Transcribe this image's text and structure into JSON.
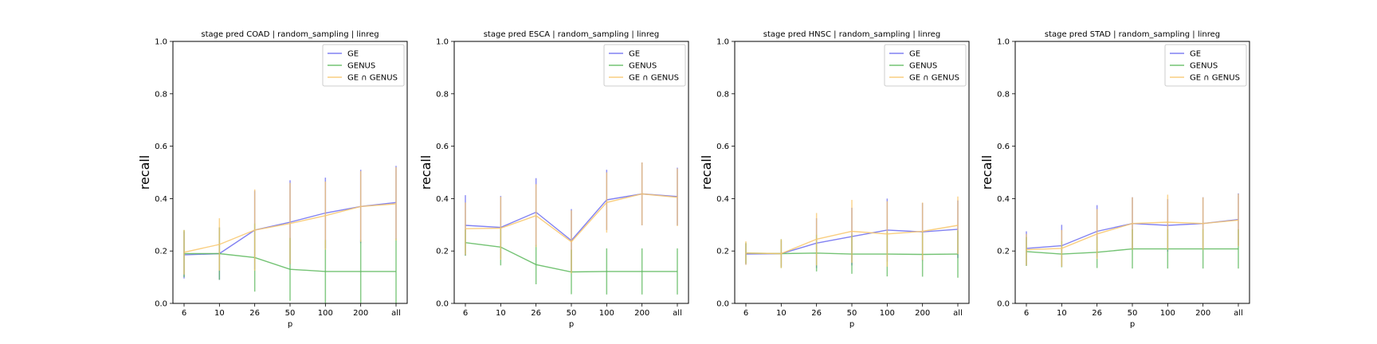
{
  "colors": {
    "GE": "#6b6bf0",
    "GENUS": "#5cb85c",
    "GE ∩ GENUS": "#f8c56a"
  },
  "chart_data": [
    {
      "type": "line",
      "title": "stage pred COAD | random_sampling | linreg",
      "xlabel": "p",
      "ylabel": "recall",
      "categories": [
        "6",
        "10",
        "26",
        "50",
        "100",
        "200",
        "all"
      ],
      "ylim": [
        0,
        1.0
      ],
      "yticks": [
        "0.0",
        "0.2",
        "0.4",
        "0.6",
        "0.8",
        "1.0"
      ],
      "legend": "top-right",
      "grid": false,
      "series": [
        {
          "name": "GE",
          "values": [
            0.185,
            0.19,
            0.28,
            0.31,
            0.345,
            0.37,
            0.385
          ],
          "err": [
            0.09,
            0.1,
            0.15,
            0.16,
            0.135,
            0.14,
            0.14
          ]
        },
        {
          "name": "GENUS",
          "values": [
            0.19,
            0.19,
            0.175,
            0.13,
            0.122,
            0.122,
            0.122
          ],
          "err": [
            0.09,
            0.1,
            0.13,
            0.12,
            0.12,
            0.12,
            0.125
          ]
        },
        {
          "name": "GE ∩ GENUS",
          "values": [
            0.195,
            0.225,
            0.28,
            0.305,
            0.335,
            0.37,
            0.38
          ],
          "err": [
            0.085,
            0.1,
            0.155,
            0.155,
            0.13,
            0.135,
            0.14
          ]
        }
      ]
    },
    {
      "type": "line",
      "title": "stage pred ESCA | random_sampling | linreg",
      "xlabel": "p",
      "ylabel": "recall",
      "categories": [
        "6",
        "10",
        "26",
        "50",
        "100",
        "200",
        "all"
      ],
      "ylim": [
        0,
        1.0
      ],
      "yticks": [
        "0.0",
        "0.2",
        "0.4",
        "0.6",
        "0.8",
        "1.0"
      ],
      "legend": "top-right",
      "grid": false,
      "series": [
        {
          "name": "GE",
          "values": [
            0.298,
            0.29,
            0.348,
            0.24,
            0.395,
            0.418,
            0.408
          ],
          "err": [
            0.115,
            0.12,
            0.13,
            0.12,
            0.115,
            0.12,
            0.11
          ]
        },
        {
          "name": "GENUS",
          "values": [
            0.232,
            0.215,
            0.148,
            0.12,
            0.122,
            0.122,
            0.122
          ],
          "err": [
            0.05,
            0.07,
            0.075,
            0.085,
            0.088,
            0.088,
            0.088
          ]
        },
        {
          "name": "GE ∩ GENUS",
          "values": [
            0.285,
            0.287,
            0.335,
            0.235,
            0.385,
            0.418,
            0.405
          ],
          "err": [
            0.1,
            0.12,
            0.12,
            0.12,
            0.115,
            0.12,
            0.11
          ]
        }
      ]
    },
    {
      "type": "line",
      "title": "stage pred HNSC | random_sampling | linreg",
      "xlabel": "p",
      "ylabel": "recall",
      "categories": [
        "6",
        "10",
        "26",
        "50",
        "100",
        "200",
        "all"
      ],
      "ylim": [
        0,
        1.0
      ],
      "yticks": [
        "0.0",
        "0.2",
        "0.4",
        "0.6",
        "0.8",
        "1.0"
      ],
      "legend": "top-right",
      "grid": false,
      "series": [
        {
          "name": "GE",
          "values": [
            0.188,
            0.19,
            0.23,
            0.255,
            0.28,
            0.273,
            0.283
          ],
          "err": [
            0.04,
            0.05,
            0.095,
            0.11,
            0.12,
            0.11,
            0.11
          ]
        },
        {
          "name": "GENUS",
          "values": [
            0.192,
            0.19,
            0.192,
            0.188,
            0.188,
            0.187,
            0.188
          ],
          "err": [
            0.04,
            0.055,
            0.07,
            0.075,
            0.085,
            0.085,
            0.09
          ]
        },
        {
          "name": "GE ∩ GENUS",
          "values": [
            0.192,
            0.19,
            0.245,
            0.275,
            0.265,
            0.275,
            0.298
          ],
          "err": [
            0.045,
            0.055,
            0.1,
            0.12,
            0.125,
            0.11,
            0.11
          ]
        }
      ]
    },
    {
      "type": "line",
      "title": "stage pred STAD | random_sampling | linreg",
      "xlabel": "p",
      "ylabel": "recall",
      "categories": [
        "6",
        "10",
        "26",
        "50",
        "100",
        "200",
        "all"
      ],
      "ylim": [
        0,
        1.0
      ],
      "yticks": [
        "0.0",
        "0.2",
        "0.4",
        "0.6",
        "0.8",
        "1.0"
      ],
      "legend": "top-right",
      "grid": false,
      "series": [
        {
          "name": "GE",
          "values": [
            0.21,
            0.22,
            0.275,
            0.305,
            0.298,
            0.305,
            0.32
          ],
          "err": [
            0.065,
            0.08,
            0.1,
            0.1,
            0.1,
            0.1,
            0.1
          ]
        },
        {
          "name": "GENUS",
          "values": [
            0.198,
            0.188,
            0.195,
            0.208,
            0.208,
            0.208,
            0.208
          ],
          "err": [
            0.055,
            0.05,
            0.06,
            0.075,
            0.075,
            0.075,
            0.075
          ]
        },
        {
          "name": "GE ∩ GENUS",
          "values": [
            0.205,
            0.21,
            0.265,
            0.305,
            0.31,
            0.305,
            0.318
          ],
          "err": [
            0.06,
            0.07,
            0.095,
            0.1,
            0.105,
            0.1,
            0.1
          ]
        }
      ]
    }
  ]
}
